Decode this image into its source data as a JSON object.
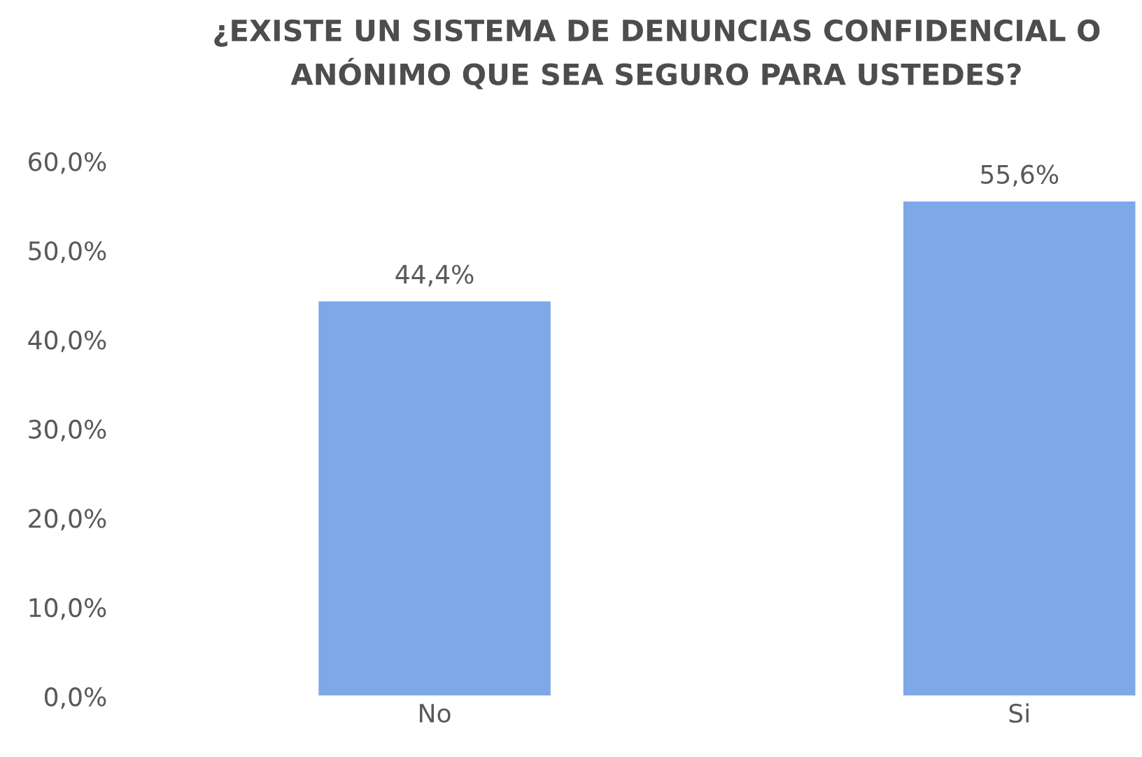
{
  "chart_data": {
    "type": "bar",
    "title": "¿EXISTE UN SISTEMA DE DENUNCIAS CONFIDENCIAL O\nANÓNIMO QUE SEA SEGURO PARA USTEDES?",
    "categories": [
      "No",
      "Si"
    ],
    "values": [
      44.4,
      55.6
    ],
    "value_labels": [
      "44,4%",
      "55,6%"
    ],
    "color": "#7ea8e8",
    "ylim": [
      0,
      60
    ],
    "yticks": [
      {
        "value": 0,
        "label": "0,0%"
      },
      {
        "value": 10,
        "label": "10,0%"
      },
      {
        "value": 20,
        "label": "20,0%"
      },
      {
        "value": 30,
        "label": "30,0%"
      },
      {
        "value": 40,
        "label": "40,0%"
      },
      {
        "value": 50,
        "label": "50,0%"
      },
      {
        "value": 60,
        "label": "60,0%"
      }
    ],
    "grid": false
  }
}
